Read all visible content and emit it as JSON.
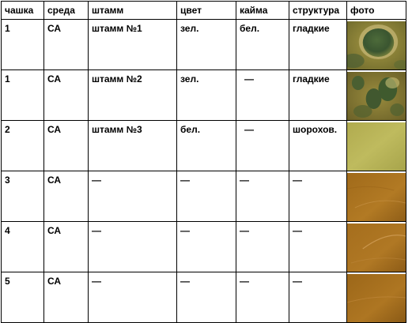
{
  "headers": [
    "чашка",
    "среда",
    "штамм",
    "цвет",
    "кайма",
    "структура",
    "фото"
  ],
  "rows": [
    {
      "dish": "1",
      "medium": "СА",
      "strain": "штамм №1",
      "color": "зел.",
      "rim": "бел.",
      "structure": "гладкие",
      "photo_icon": "colony-photo-green-large"
    },
    {
      "dish": "1",
      "medium": "СА",
      "strain": "штамм №2",
      "color": "зел.",
      "rim": "—",
      "structure": "гладкие",
      "photo_icon": "colony-photo-green-small"
    },
    {
      "dish": "2",
      "medium": "СА",
      "strain": "штамм №3",
      "color": "бел.",
      "rim": "—",
      "structure": "шорохов.",
      "photo_icon": "colony-photo-yellow"
    },
    {
      "dish": "3",
      "medium": "СА",
      "strain": "—",
      "color": "—",
      "rim": "—",
      "structure": "—",
      "photo_icon": "agar-photo-empty"
    },
    {
      "dish": "4",
      "medium": "СА",
      "strain": "—",
      "color": "—",
      "rim": "—",
      "structure": "—",
      "photo_icon": "agar-photo-empty"
    },
    {
      "dish": "5",
      "medium": "СА",
      "strain": "—",
      "color": "—",
      "rim": "—",
      "structure": "—",
      "photo_icon": "agar-photo-empty"
    }
  ],
  "colors": {
    "agar_amber": "#a8761e",
    "agar_yellow": "#b7b24a",
    "colony_green": "#3f5a2e"
  }
}
